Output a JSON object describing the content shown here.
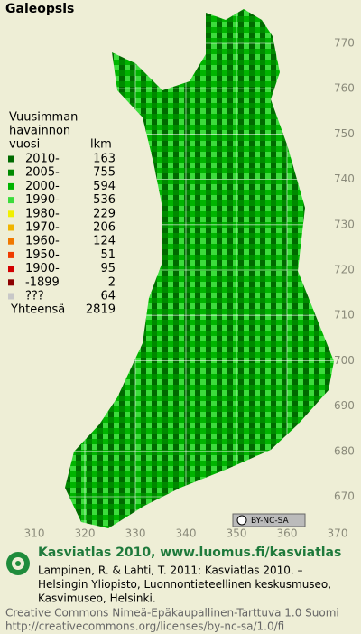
{
  "title": "Galeopsis",
  "legend": {
    "heading": [
      "Vuusimman",
      "havainnon",
      "vuosi"
    ],
    "count_heading": "lkm",
    "rows": [
      {
        "label": "2010-",
        "count": 163,
        "color": "#006a00"
      },
      {
        "label": "2005-",
        "count": 755,
        "color": "#008a00"
      },
      {
        "label": "2000-",
        "count": 594,
        "color": "#00b400"
      },
      {
        "label": "1990-",
        "count": 536,
        "color": "#3cdc3c"
      },
      {
        "label": "1980-",
        "count": 229,
        "color": "#f0f000"
      },
      {
        "label": "1970-",
        "count": 206,
        "color": "#f0b400"
      },
      {
        "label": "1960-",
        "count": 124,
        "color": "#f07800"
      },
      {
        "label": "1950-",
        "count": 51,
        "color": "#f03c00"
      },
      {
        "label": "1900-",
        "count": 95,
        "color": "#d20000"
      },
      {
        "label": "-1899",
        "count": 2,
        "color": "#8c0000"
      },
      {
        "label": "???",
        "count": 64,
        "color": "#c8c8c8"
      }
    ],
    "total_label": "Yhteensä",
    "total": 2819
  },
  "grid": {
    "north": [
      770,
      760,
      750,
      740,
      730,
      720,
      710,
      700,
      690,
      680,
      670
    ],
    "east": [
      310,
      320,
      330,
      340,
      350,
      360,
      370
    ]
  },
  "license_badge": "BY-NC-SA",
  "footer": {
    "heading": "Kasviatlas 2010, www.luomus.fi/kasviatlas",
    "citation": [
      "Lampinen, R. & Lahti, T. 2011: Kasviatlas 2010. –",
      "Helsingin Yliopisto, Luonnontieteellinen keskusmuseo,",
      "Kasvimuseo, Helsinki."
    ],
    "license": [
      "Creative Commons Nimeä-Epäkaupallinen-Tarttuva 1.0 Suomi",
      "http://creativecommons.org/licenses/by-nc-sa/1.0/fi"
    ]
  }
}
